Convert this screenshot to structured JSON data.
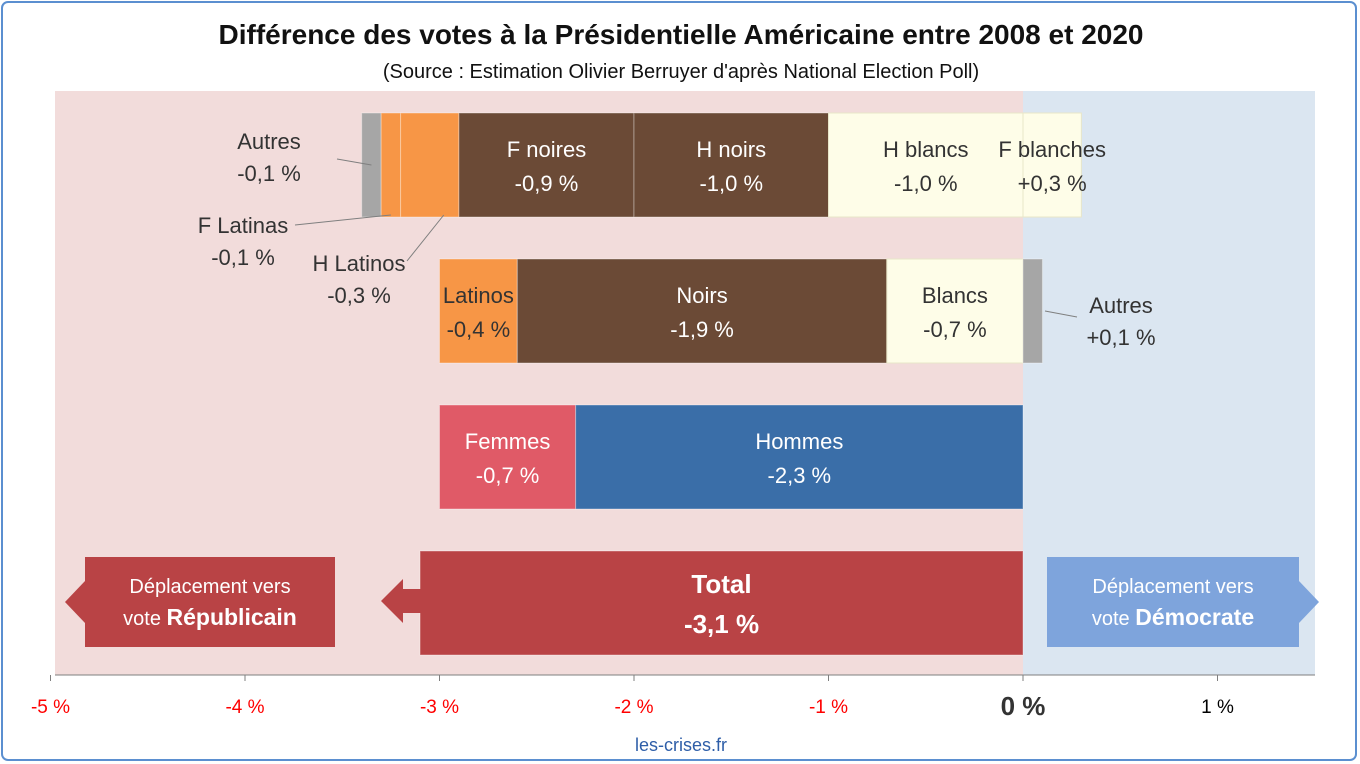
{
  "title": "Différence des votes à la Présidentielle Américaine entre 2008 et 2020",
  "subtitle": "(Source : Estimation Olivier Berruyer d'après National Election Poll)",
  "footer": "les-crises.fr",
  "colors": {
    "republican_zone": "#f2dcdb",
    "democrat_zone": "#dbe6f1",
    "others": "#a6a6a6",
    "latinos": "#f79646",
    "blacks": "#6b4a36",
    "whites": "#fefde8",
    "women": "#e05a67",
    "men": "#3a6ea8",
    "total": "#b94345",
    "arrow_republican": "#b94345",
    "arrow_democrat": "#7ea4dc",
    "negative_tick": "#ff0000",
    "positive_tick": "#000000"
  },
  "arrows": {
    "republican": {
      "line1": "Déplacement vers",
      "line2_prefix": "vote ",
      "line2_bold": "Républicain"
    },
    "democrat": {
      "line1": "Déplacement vers",
      "line2_prefix": "vote ",
      "line2_bold": "Démocrate"
    }
  },
  "chart_data": {
    "type": "bar",
    "orientation": "horizontal-stacked",
    "xlim": [
      -5,
      1.5
    ],
    "ticks": [
      {
        "value": -5,
        "label": "-5 %"
      },
      {
        "value": -4,
        "label": "-4 %"
      },
      {
        "value": -3,
        "label": "-3 %"
      },
      {
        "value": -2,
        "label": "-2 %"
      },
      {
        "value": -1,
        "label": "-1 %"
      },
      {
        "value": 0,
        "label": "0 %"
      },
      {
        "value": 1,
        "label": "1 %"
      }
    ],
    "rows": [
      {
        "name": "row-gender-race",
        "segments": [
          {
            "name": "Autres",
            "value": -0.1,
            "label": "-0,1 %",
            "color_key": "others",
            "label_mode": "callout",
            "callout": "upper-left"
          },
          {
            "name": "F Latinas",
            "value": -0.1,
            "label": "-0,1 %",
            "color_key": "latinos",
            "label_mode": "callout",
            "callout": "lower-left"
          },
          {
            "name": "H Latinos",
            "value": -0.3,
            "label": "-0,3 %",
            "color_key": "latinos",
            "label_mode": "callout",
            "callout": "below"
          },
          {
            "name": "F noires",
            "value": -0.9,
            "label": "-0,9 %",
            "color_key": "blacks",
            "label_mode": "inside-light"
          },
          {
            "name": "H noirs",
            "value": -1.0,
            "label": "-1,0 %",
            "color_key": "blacks",
            "label_mode": "inside-light"
          },
          {
            "name": "H blancs",
            "value": -1.0,
            "label": "-1,0 %",
            "color_key": "whites",
            "label_mode": "inside-dark"
          },
          {
            "name": "F blanches",
            "value": 0.3,
            "label": "+0,3 %",
            "color_key": "whites",
            "label_mode": "inside-dark"
          }
        ]
      },
      {
        "name": "row-race",
        "segments": [
          {
            "name": "Latinos",
            "value": -0.4,
            "label": "-0,4 %",
            "color_key": "latinos",
            "label_mode": "inside-dark"
          },
          {
            "name": "Noirs",
            "value": -1.9,
            "label": "-1,9 %",
            "color_key": "blacks",
            "label_mode": "inside-light"
          },
          {
            "name": "Blancs",
            "value": -0.7,
            "label": "-0,7 %",
            "color_key": "whites",
            "label_mode": "inside-dark"
          },
          {
            "name": "Autres",
            "value": 0.1,
            "label": "+0,1 %",
            "color_key": "others",
            "label_mode": "callout",
            "callout": "right"
          }
        ]
      },
      {
        "name": "row-gender",
        "segments": [
          {
            "name": "Femmes",
            "value": -0.7,
            "label": "-0,7 %",
            "color_key": "women",
            "label_mode": "inside-light"
          },
          {
            "name": "Hommes",
            "value": -2.3,
            "label": "-2,3 %",
            "color_key": "men",
            "label_mode": "inside-light"
          }
        ]
      },
      {
        "name": "row-total",
        "segments": [
          {
            "name": "Total",
            "value": -3.1,
            "label": "-3,1 %",
            "color_key": "total",
            "label_mode": "inside-bold"
          }
        ]
      }
    ]
  }
}
